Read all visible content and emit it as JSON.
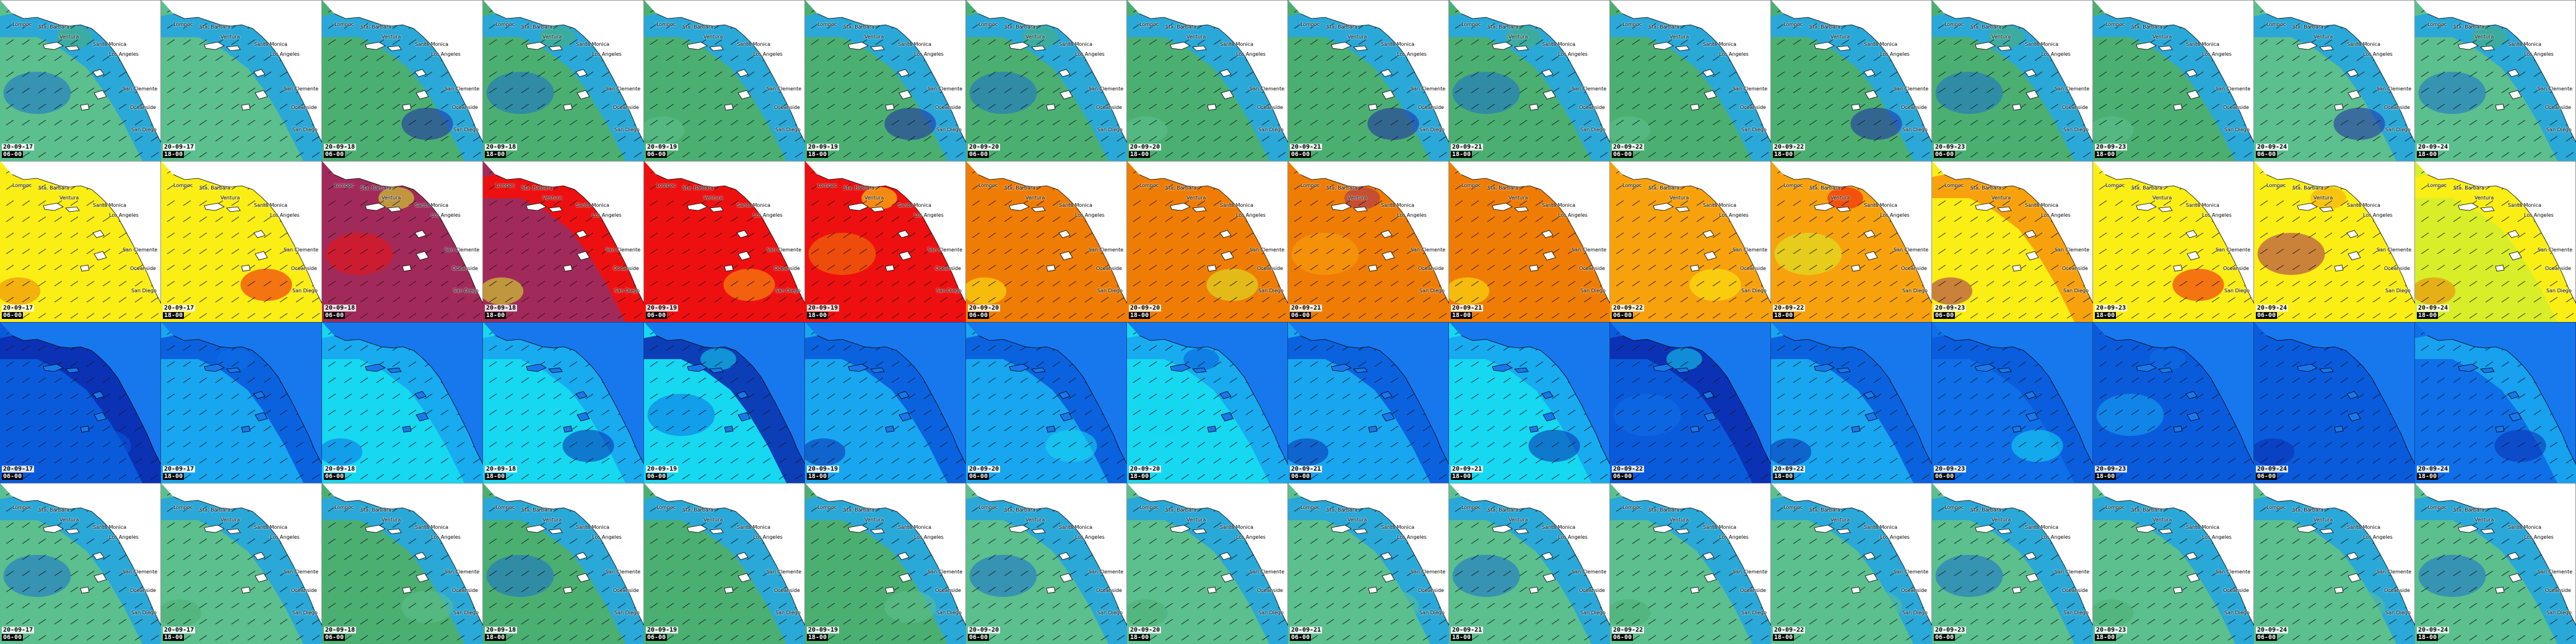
{
  "rows": [
    {
      "name": "row-1",
      "land": "#ffffff",
      "palette": [
        "#5cbf8e",
        "#4caf72",
        "#2aa8d8",
        "#1a70d0",
        "#1f2aa8"
      ],
      "zone_color_index": [
        0,
        0,
        1,
        1,
        1,
        1,
        1,
        1,
        1,
        1,
        1,
        1,
        1,
        1,
        0,
        0
      ],
      "sea_color_index": [
        2,
        2,
        2,
        2,
        2,
        2,
        2,
        2,
        2,
        2,
        2,
        2,
        2,
        2,
        2,
        2
      ],
      "show_places": true
    },
    {
      "name": "row-2",
      "land": "#ffffff",
      "palette": [
        "#fbee14",
        "#a22a5a",
        "#ee1010",
        "#ef7d05",
        "#f7a20d",
        "#d8ee28"
      ],
      "zone_color_index": [
        0,
        0,
        1,
        1,
        2,
        2,
        3,
        3,
        3,
        3,
        4,
        4,
        0,
        0,
        0,
        5
      ],
      "sea_color_index": [
        0,
        0,
        1,
        2,
        2,
        2,
        3,
        3,
        3,
        3,
        4,
        4,
        4,
        0,
        0,
        0
      ],
      "show_places": true
    },
    {
      "name": "row-3",
      "land": "#1778ee",
      "palette": [
        "#0a5bdc",
        "#18a6f0",
        "#16d8f0",
        "#0b2db0",
        "#0e6fe8"
      ],
      "zone_color_index": [
        0,
        1,
        2,
        2,
        2,
        1,
        1,
        2,
        1,
        2,
        0,
        1,
        4,
        0,
        0,
        4
      ],
      "sea_color_index": [
        3,
        0,
        1,
        1,
        3,
        0,
        0,
        1,
        0,
        1,
        3,
        0,
        0,
        0,
        0,
        1
      ],
      "show_places": false
    },
    {
      "name": "row-4",
      "land": "#ffffff",
      "palette": [
        "#5cbf8e",
        "#4caf72",
        "#2aa8d8",
        "#1a70d0"
      ],
      "zone_color_index": [
        0,
        0,
        1,
        1,
        1,
        1,
        0,
        0,
        0,
        0,
        0,
        0,
        0,
        0,
        0,
        0
      ],
      "sea_color_index": [
        2,
        2,
        2,
        2,
        2,
        2,
        2,
        2,
        2,
        2,
        2,
        2,
        2,
        2,
        2,
        2
      ],
      "show_places": true
    }
  ],
  "frames": [
    {
      "date": "20-09-17",
      "time": "06-00"
    },
    {
      "date": "20-09-17",
      "time": "18-00"
    },
    {
      "date": "20-09-18",
      "time": "06-00"
    },
    {
      "date": "20-09-18",
      "time": "18-00"
    },
    {
      "date": "20-09-19",
      "time": "06-00"
    },
    {
      "date": "20-09-19",
      "time": "18-00"
    },
    {
      "date": "20-09-20",
      "time": "06-00"
    },
    {
      "date": "20-09-20",
      "time": "18-00"
    },
    {
      "date": "20-09-21",
      "time": "06-00"
    },
    {
      "date": "20-09-21",
      "time": "18-00"
    },
    {
      "date": "20-09-22",
      "time": "06-00"
    },
    {
      "date": "20-09-22",
      "time": "18-00"
    },
    {
      "date": "20-09-23",
      "time": "06-00"
    },
    {
      "date": "20-09-23",
      "time": "18-00"
    },
    {
      "date": "20-09-24",
      "time": "06-00"
    },
    {
      "date": "20-09-24",
      "time": "18-00"
    }
  ],
  "places": [
    "Lompoc",
    "Sta. Barbara",
    "Ventura",
    "Santa Monica",
    "Los Angeles",
    "San Clemente",
    "Oceanside",
    "San Diego"
  ]
}
